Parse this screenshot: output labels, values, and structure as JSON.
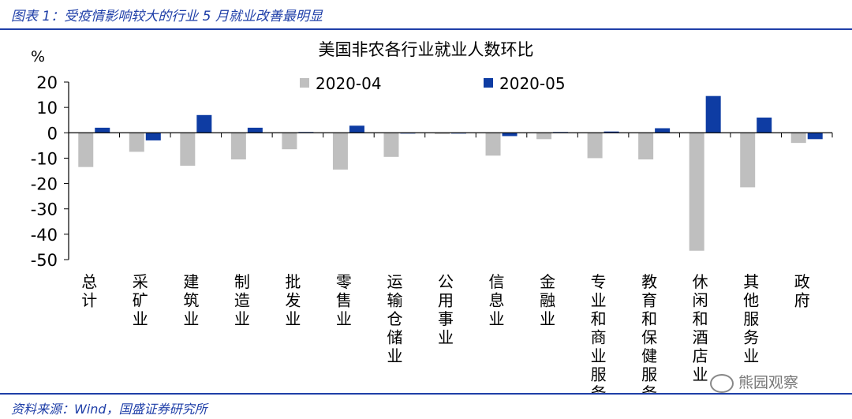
{
  "figure": {
    "title": "图表 1：受疫情影响较大的行业 5 月就业改善最明显",
    "source": "资料来源：Wind，国盛证券研究所",
    "watermark": "熊园观察"
  },
  "colors": {
    "series_a": "#bfbfbf",
    "series_b": "#0e3ca3",
    "rule": "#1f3fa8"
  },
  "chart_data": {
    "type": "bar",
    "title": "美国非农各行业就业人数环比",
    "ylabel": "%",
    "ylim": [
      -50,
      20
    ],
    "yticks": [
      20,
      10,
      0,
      -10,
      -20,
      -30,
      -40,
      -50
    ],
    "legend_position": "top-center",
    "categories": [
      "总计",
      "采矿业",
      "建筑业",
      "制造业",
      "批发业",
      "零售业",
      "运输仓储业",
      "公用事业",
      "信息业",
      "金融业",
      "专业和商业服务",
      "教育和保健服务",
      "休闲和酒店业",
      "其他服务业",
      "政府"
    ],
    "series": [
      {
        "name": "2020-04",
        "values": [
          -13.5,
          -7.5,
          -13.0,
          -10.5,
          -6.5,
          -14.5,
          -9.5,
          -0.5,
          -9.0,
          -2.5,
          -10.0,
          -10.5,
          -46.5,
          -21.5,
          -4.0
        ]
      },
      {
        "name": "2020-05",
        "values": [
          2.0,
          -3.0,
          7.0,
          2.0,
          0.3,
          2.8,
          -0.3,
          -0.3,
          -1.3,
          0.3,
          0.5,
          1.8,
          14.5,
          6.0,
          -2.5
        ]
      }
    ]
  }
}
